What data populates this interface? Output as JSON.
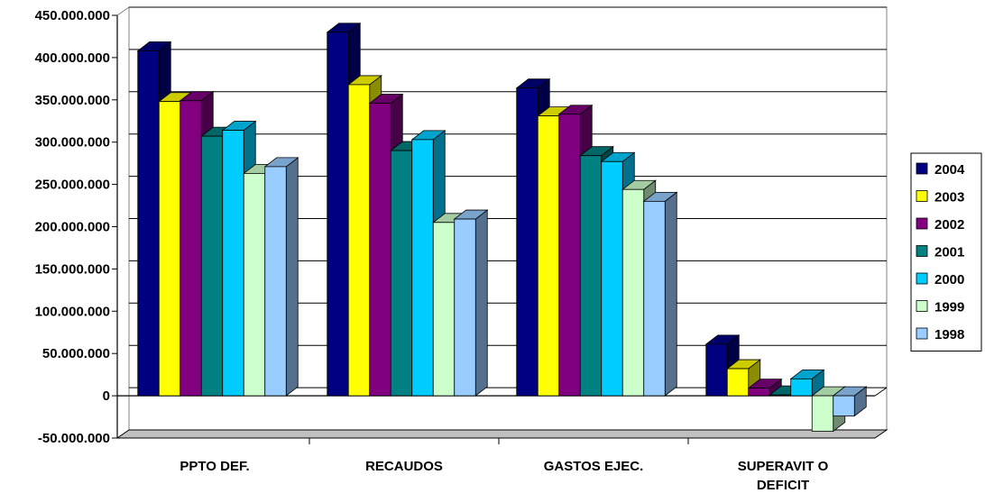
{
  "chart_data": {
    "type": "bar",
    "style": "3d-clustered-column",
    "title": "",
    "xlabel": "",
    "ylabel": "",
    "ylim": [
      -50000000,
      450000000
    ],
    "y_ticks": [
      450000000,
      400000000,
      350000000,
      300000000,
      250000000,
      200000000,
      150000000,
      100000000,
      50000000,
      0,
      -50000000
    ],
    "y_tick_labels": [
      "450.000.000",
      "400.000.000",
      "350.000.000",
      "300.000.000",
      "250.000.000",
      "200.000.000",
      "150.000.000",
      "100.000.000",
      "50.000.000",
      "0",
      "-50.000.000"
    ],
    "grid": true,
    "legend_position": "right",
    "categories": [
      "PPTO DEF.",
      "RECAUDOS",
      "GASTOS EJEC.",
      "SUPERAVIT O DEFICIT"
    ],
    "category_label_lines": [
      [
        "PPTO DEF."
      ],
      [
        "RECAUDOS"
      ],
      [
        "GASTOS EJEC."
      ],
      [
        "SUPERAVIT  O",
        "DEFICIT"
      ]
    ],
    "series": [
      {
        "name": "2004",
        "color": "#000080",
        "values": [
          408000000,
          430000000,
          364000000,
          61000000
        ]
      },
      {
        "name": "2003",
        "color": "#FFFF00",
        "values": [
          348000000,
          368000000,
          331000000,
          32000000
        ]
      },
      {
        "name": "2002",
        "color": "#800080",
        "values": [
          349000000,
          346000000,
          333000000,
          9000000
        ]
      },
      {
        "name": "2001",
        "color": "#008080",
        "values": [
          307000000,
          290000000,
          284000000,
          1000000
        ]
      },
      {
        "name": "2000",
        "color": "#00CCFF",
        "values": [
          314000000,
          303000000,
          277000000,
          20000000
        ]
      },
      {
        "name": "1999",
        "color": "#CCFFCC",
        "values": [
          263000000,
          205000000,
          244000000,
          -42000000
        ]
      },
      {
        "name": "1998",
        "color": "#99CCFF",
        "values": [
          271000000,
          209000000,
          230000000,
          -24000000
        ]
      }
    ]
  }
}
